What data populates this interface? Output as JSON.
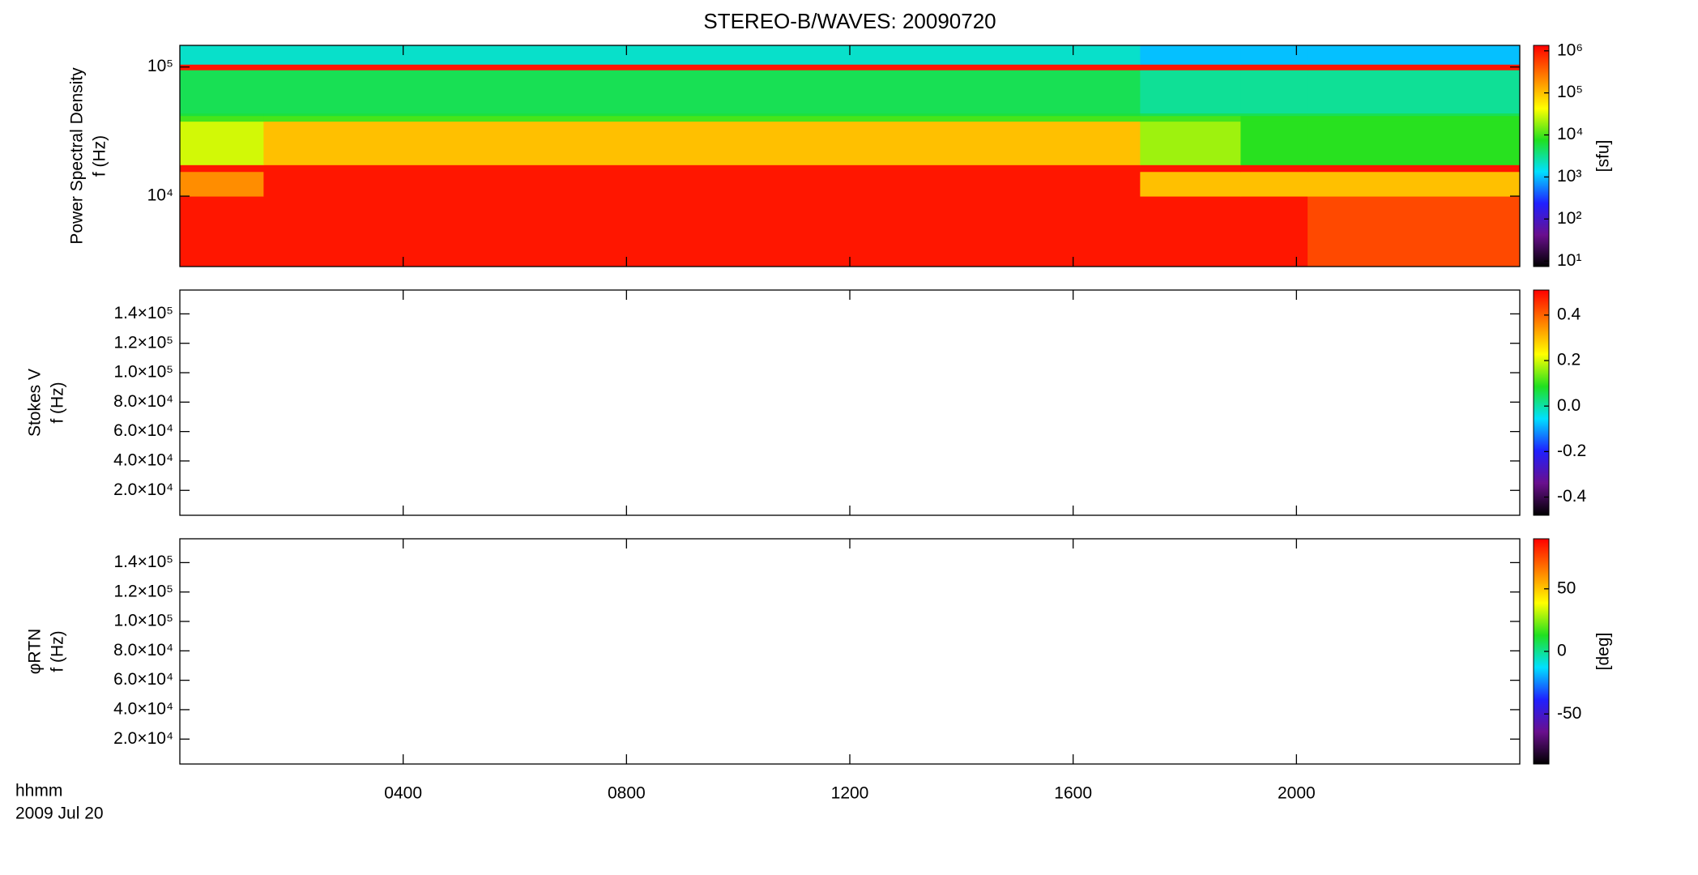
{
  "chart_data": [
    {
      "type": "heatmap",
      "title": "STEREO-B/WAVES: 20090720",
      "ylabel": [
        "Power Spectral Density",
        "f (Hz)"
      ],
      "log": true,
      "ylim": [
        2850,
        147000
      ],
      "yticks": [
        {
          "value": 10000,
          "label": "10⁴"
        },
        {
          "value": 100000,
          "label": "10⁵"
        }
      ],
      "xlim": [
        0,
        24
      ],
      "x_edges": [
        0,
        1.5,
        17.2,
        19,
        20.2,
        24
      ],
      "y_edges": [
        2500,
        10000,
        15500,
        17500,
        38000,
        42000,
        44000,
        95000,
        105000,
        150000
      ],
      "z": [
        [
          1000000,
          1000000,
          1000000,
          1000000,
          500000
        ],
        [
          200000,
          1000000,
          100000,
          100000,
          100000
        ],
        [
          1000000,
          1000000,
          1000000,
          1000000,
          1000000
        ],
        [
          30000,
          100000,
          20000,
          8000,
          8000
        ],
        [
          10000,
          10000,
          10000,
          8000,
          8000
        ],
        [
          6000,
          6000,
          5000,
          5000,
          5000
        ],
        [
          5000,
          5000,
          3000,
          3000,
          3000
        ],
        [
          1000000,
          1000000,
          1000000,
          1000000,
          1000000
        ],
        [
          2000,
          2000,
          1000,
          1000,
          1000
        ]
      ],
      "colorbar": {
        "log": true,
        "zlim": [
          7.4,
          1350000
        ],
        "label": "[sfu]",
        "zticks": [
          {
            "value": 10,
            "label": "10¹"
          },
          {
            "value": 100,
            "label": "10²"
          },
          {
            "value": 1000,
            "label": "10³"
          },
          {
            "value": 10000,
            "label": "10⁴"
          },
          {
            "value": 100000,
            "label": "10⁵"
          },
          {
            "value": 1000000,
            "label": "10⁶"
          }
        ]
      },
      "colormap": [
        "#000000",
        "#6a0f8e",
        "#2020ff",
        "#00e0ff",
        "#20e020",
        "#ffff00",
        "#ff8000",
        "#ff0000"
      ]
    },
    {
      "type": "heatmap",
      "ylabel": [
        "Stokes V",
        "f (Hz)"
      ],
      "log": false,
      "ylim": [
        3060,
        156200
      ],
      "yticks": [
        {
          "value": 20000,
          "label": "2.0×10⁴"
        },
        {
          "value": 40000,
          "label": "4.0×10⁴"
        },
        {
          "value": 60000,
          "label": "6.0×10⁴"
        },
        {
          "value": 80000,
          "label": "8.0×10⁴"
        },
        {
          "value": 100000,
          "label": "1.0×10⁵"
        },
        {
          "value": 120000,
          "label": "1.2×10⁵"
        },
        {
          "value": 140000,
          "label": "1.4×10⁵"
        }
      ],
      "xlim": [
        0,
        24
      ],
      "colorbar": {
        "log": false,
        "zlim": [
          -0.48,
          0.51
        ],
        "zticks": [
          -0.4,
          -0.2,
          {
            "value": 0,
            "label": "0.0"
          },
          0.2,
          0.4
        ]
      },
      "colormap": [
        "#000000",
        "#6a0f8e",
        "#2020ff",
        "#00e0ff",
        "#20e020",
        "#ffff00",
        "#ff8000",
        "#ff0000"
      ]
    },
    {
      "type": "heatmap",
      "ylabel": [
        "φRTN",
        "f (Hz)"
      ],
      "log": false,
      "ylim": [
        3060,
        156200
      ],
      "yticks": [
        {
          "value": 20000,
          "label": "2.0×10⁴"
        },
        {
          "value": 40000,
          "label": "4.0×10⁴"
        },
        {
          "value": 60000,
          "label": "6.0×10⁴"
        },
        {
          "value": 80000,
          "label": "8.0×10⁴"
        },
        {
          "value": 100000,
          "label": "1.0×10⁵"
        },
        {
          "value": 120000,
          "label": "1.2×10⁵"
        },
        {
          "value": 140000,
          "label": "1.4×10⁵"
        }
      ],
      "xlim": [
        0,
        24
      ],
      "xticks": [
        {
          "value": 4,
          "label": "0400"
        },
        {
          "value": 8,
          "label": "0800"
        },
        {
          "value": 12,
          "label": "1200"
        },
        {
          "value": 16,
          "label": "1600"
        },
        {
          "value": 20,
          "label": "2000"
        }
      ],
      "xlabel": [
        "hhmm",
        "2009 Jul 20"
      ],
      "colorbar": {
        "log": false,
        "zlim": [
          -90,
          90
        ],
        "label": "[deg]",
        "zticks": [
          -50,
          0,
          50
        ]
      },
      "colormap": [
        "#000000",
        "#6a0f8e",
        "#2020ff",
        "#00e0ff",
        "#20e020",
        "#ffff00",
        "#ff8000",
        "#ff0000"
      ]
    }
  ]
}
